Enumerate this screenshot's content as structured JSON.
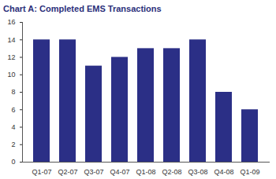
{
  "chart_data": {
    "type": "bar",
    "title": "Chart A: Completed EMS Transactions",
    "categories": [
      "Q1-07",
      "Q2-07",
      "Q3-07",
      "Q4-07",
      "Q1-08",
      "Q2-08",
      "Q3-08",
      "Q4-08",
      "Q1-09"
    ],
    "values": [
      14,
      14,
      11,
      12,
      13,
      13,
      14,
      8,
      6
    ],
    "color": "#2b2f86",
    "ylim": [
      0,
      16
    ],
    "yticks": [
      0,
      2,
      4,
      6,
      8,
      10,
      12,
      14,
      16
    ],
    "grid": false
  }
}
